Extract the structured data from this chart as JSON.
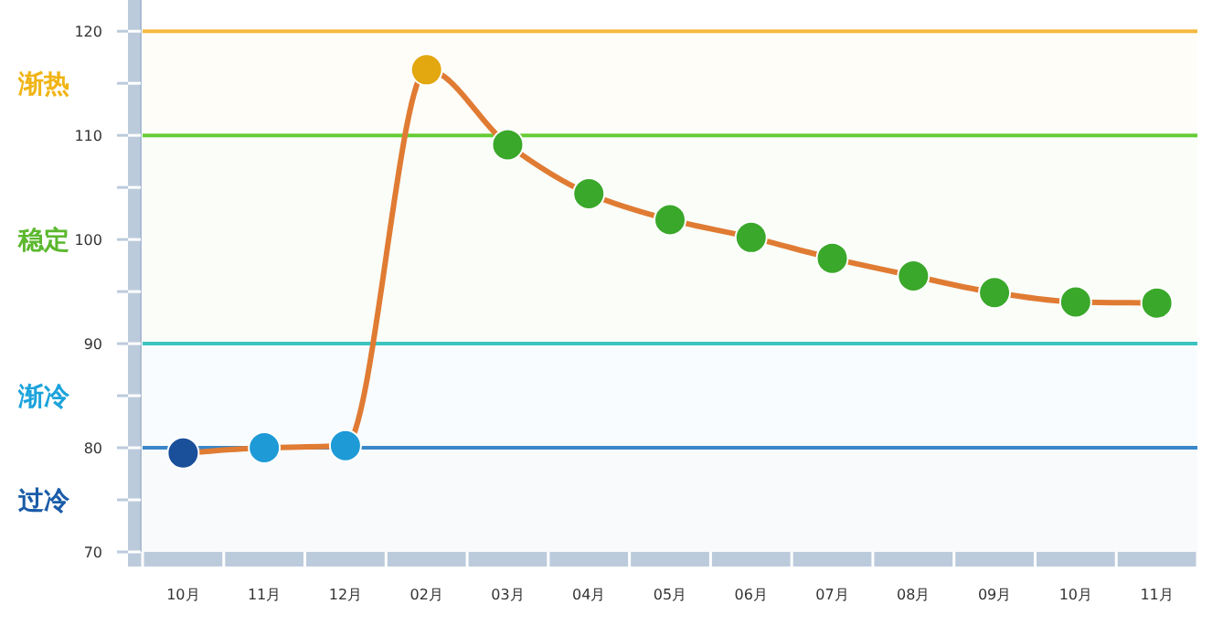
{
  "chart_data": {
    "type": "line",
    "categories": [
      "10月",
      "11月",
      "12月",
      "02月",
      "03月",
      "04月",
      "05月",
      "06月",
      "07月",
      "08月",
      "09月",
      "10月",
      "11月"
    ],
    "series": [
      {
        "color": "#e07b33",
        "colors": [
          "#1a4f9a",
          "#1e9ad6",
          "#1e9ad6",
          "#e3a70f",
          "#3aa82a",
          "#3aa82a",
          "#3aa82a",
          "#3aa82a",
          "#3aa82a",
          "#3aa82a",
          "#3aa82a",
          "#3aa82a",
          "#3aa82a"
        ],
        "values": [
          79.5,
          80.0,
          80.2,
          116.3,
          109.1,
          104.4,
          101.9,
          100.2,
          98.2,
          96.5,
          94.9,
          94.0,
          93.9
        ]
      }
    ],
    "ylim": [
      70,
      123
    ],
    "yticks": [
      70,
      {
        "value": 75,
        "label": null
      },
      80,
      {
        "value": 85,
        "label": null
      },
      90,
      {
        "value": 95,
        "label": null
      },
      100,
      {
        "value": 105,
        "label": null
      },
      110,
      {
        "value": 115,
        "label": null
      },
      120
    ],
    "ref_lines": [
      {
        "axis": "y",
        "value": 120,
        "color": "#f5b940"
      },
      {
        "axis": "y",
        "value": 110,
        "color": "#66cc33"
      },
      {
        "axis": "y",
        "value": 90,
        "color": "#3cc3c0"
      },
      {
        "axis": "y",
        "value": 80,
        "color": "#3a86c8"
      }
    ],
    "bands": [
      {
        "axis": "y",
        "from": 110,
        "to": 120,
        "label": "渐热",
        "color": "#f0b414"
      },
      {
        "axis": "y",
        "from": 90,
        "to": 110,
        "label": "稳定",
        "color": "#5cb82e"
      },
      {
        "axis": "y",
        "from": 80,
        "to": 90,
        "label": "渐冷",
        "color": "#1ca3dc"
      },
      {
        "axis": "y",
        "from": 70,
        "to": 80,
        "label": "过冷",
        "color": "#1a5ca8"
      }
    ],
    "marker": "circle",
    "line_style": "solid"
  }
}
